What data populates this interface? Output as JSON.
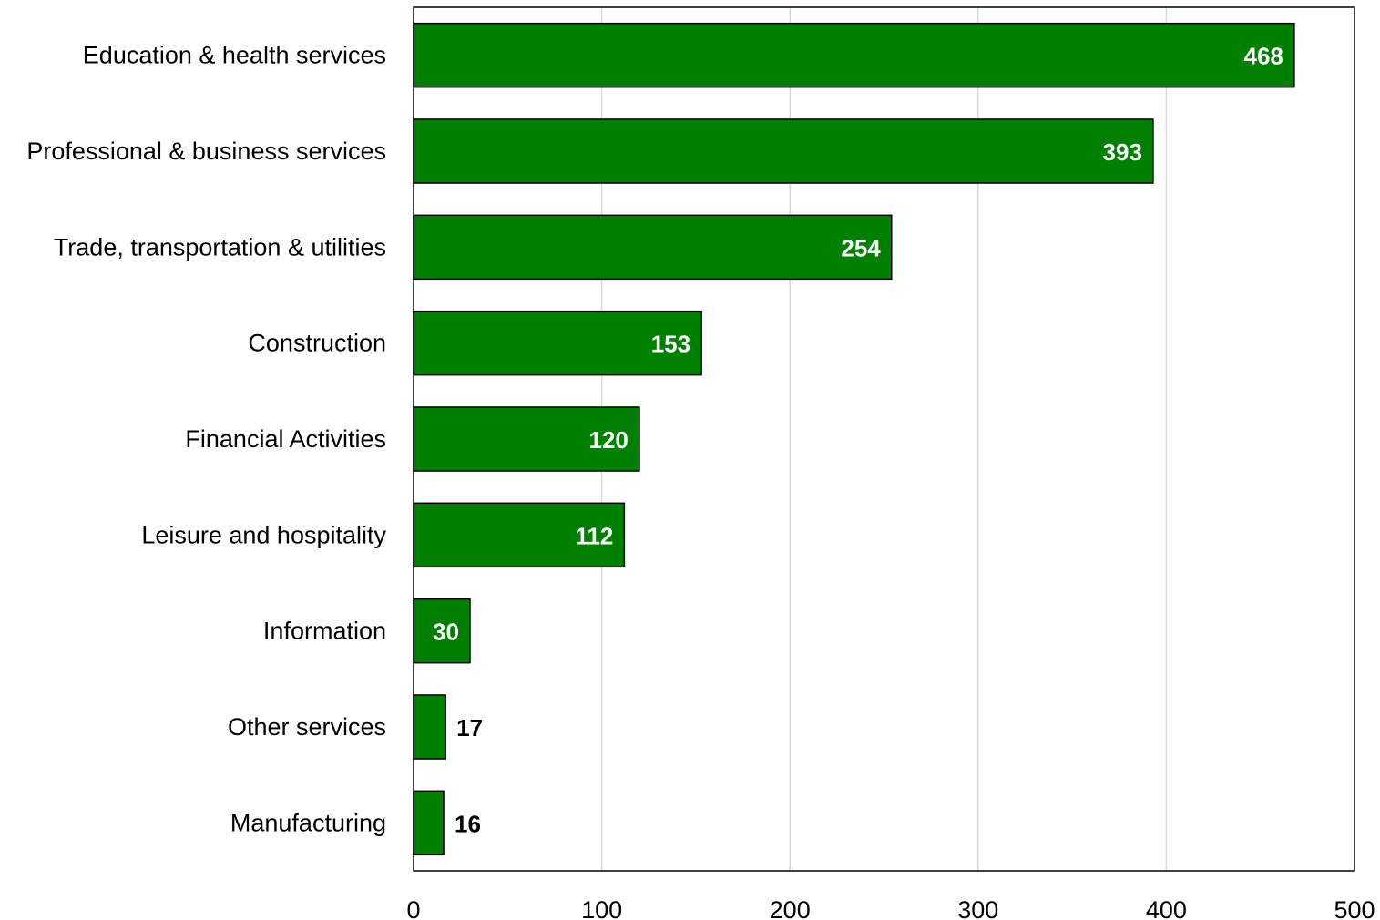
{
  "chart_data": {
    "type": "bar",
    "orientation": "horizontal",
    "categories": [
      "Education & health services",
      "Professional & business services",
      "Trade, transportation & utilities",
      "Construction",
      "Financial Activities",
      "Leisure and hospitality",
      "Information",
      "Other services",
      "Manufacturing"
    ],
    "values": [
      468,
      393,
      254,
      153,
      120,
      112,
      30,
      17,
      16
    ],
    "xlim": [
      0,
      500
    ],
    "xticks": [
      0,
      100,
      200,
      300,
      400,
      500
    ],
    "grid": true,
    "legend": "none",
    "colors": {
      "bar": "#008000",
      "label_inside": "#ffffff",
      "label_outside": "#000000"
    }
  }
}
